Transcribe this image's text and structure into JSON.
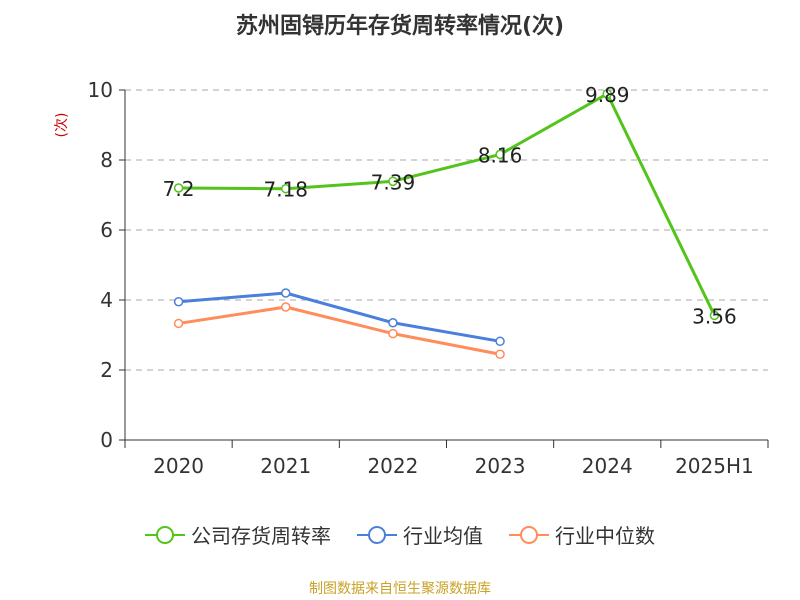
{
  "title": "苏州固锝历年存货周转率情况(次)",
  "source": "制图数据来自恒生聚源数据库",
  "colors": {
    "company": "#52c41a",
    "industry_avg": "#4a7fdc",
    "industry_median": "#ff8c5a",
    "grid": "#aaaaaa",
    "axis": "#333333",
    "ylabel": "#cc0000"
  },
  "chart_data": {
    "type": "line",
    "title": "苏州固锝历年存货周转率情况(次)",
    "ylabel": "(次)",
    "xlabel": "",
    "categories": [
      "2020",
      "2021",
      "2022",
      "2023",
      "2024",
      "2025H1"
    ],
    "ylim": [
      0,
      10
    ],
    "yticks": [
      0,
      2,
      4,
      6,
      8,
      10
    ],
    "grid": true,
    "legend_position": "bottom",
    "series": [
      {
        "name": "公司存货周转率",
        "key": "company",
        "values": [
          7.2,
          7.18,
          7.39,
          8.16,
          9.89,
          3.56
        ],
        "labels": [
          "7.2",
          "7.18",
          "7.39",
          "8.16",
          "9.89",
          "3.56"
        ]
      },
      {
        "name": "行业均值",
        "key": "industry_avg",
        "values": [
          3.95,
          4.2,
          3.35,
          2.82,
          null,
          null
        ]
      },
      {
        "name": "行业中位数",
        "key": "industry_median",
        "values": [
          3.33,
          3.8,
          3.04,
          2.45,
          null,
          null
        ]
      }
    ]
  }
}
